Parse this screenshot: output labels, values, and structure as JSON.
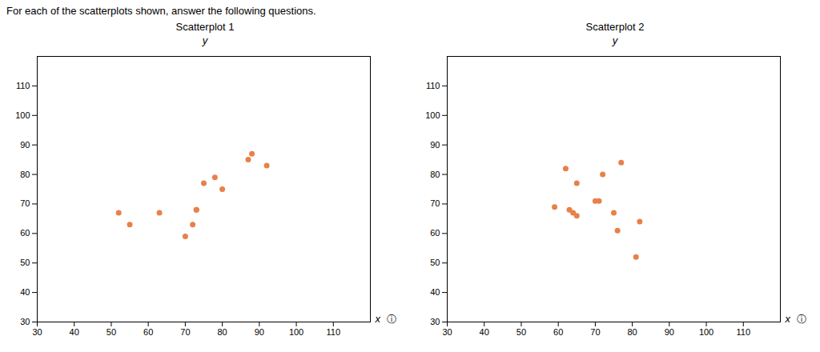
{
  "title": "For each of the scatterplots shown, answer the following questions.",
  "chart_data": [
    {
      "type": "scatter",
      "title": "Scatterplot 1",
      "x_label": "x",
      "y_label": "y",
      "annotations": [
        "ⓘ"
      ],
      "color": "#E8804A",
      "x": [
        52,
        55,
        63,
        70,
        72,
        73,
        73,
        75,
        78,
        80,
        87,
        88,
        92
      ],
      "values": [
        67,
        63,
        67,
        59,
        63,
        68,
        68,
        77,
        79,
        75,
        85,
        87,
        83
      ],
      "xlim": [
        30,
        120
      ],
      "ylim": [
        30,
        120
      ],
      "xticks": [
        30,
        40,
        50,
        60,
        70,
        80,
        90,
        100,
        110
      ],
      "yticks": [
        30,
        40,
        50,
        60,
        70,
        80,
        90,
        100,
        110
      ],
      "grid": false
    },
    {
      "type": "scatter",
      "title": "Scatterplot 2",
      "x_label": "x",
      "y_label": "y",
      "annotations": [
        "ⓘ"
      ],
      "color": "#E8804A",
      "x": [
        59,
        62,
        63,
        64,
        65,
        65,
        70,
        71,
        72,
        75,
        76,
        77,
        81,
        82
      ],
      "values": [
        69,
        82,
        68,
        67,
        66,
        77,
        71,
        71,
        80,
        67,
        61,
        84,
        52,
        64
      ],
      "xlim": [
        30,
        120
      ],
      "ylim": [
        30,
        120
      ],
      "xticks": [
        30,
        40,
        50,
        60,
        70,
        80,
        90,
        100,
        110
      ],
      "yticks": [
        30,
        40,
        50,
        60,
        70,
        80,
        90,
        100,
        110
      ],
      "grid": false
    }
  ]
}
